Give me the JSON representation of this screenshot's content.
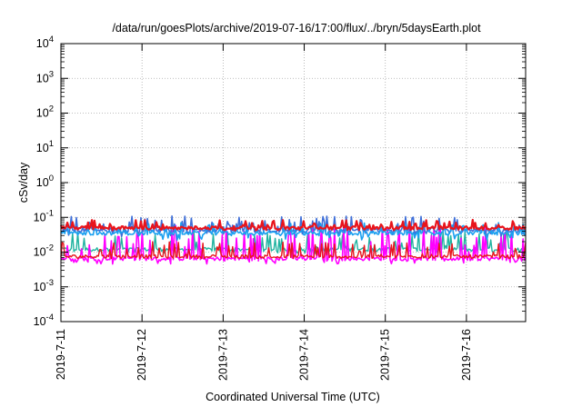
{
  "chart_data": {
    "type": "line",
    "title": "/data/run/goesPlots/archive/2019-07-16/17:00/flux/../bryn/5daysEarth.plot",
    "xlabel": "Coordinated Universal Time (UTC)",
    "ylabel": "cSv/day",
    "yscale": "log",
    "ylim": [
      0.0001,
      10000
    ],
    "xlim": [
      0,
      5.73
    ],
    "grid": true,
    "y_ticks": [
      {
        "base": "10",
        "exp": "-4",
        "value": 0.0001
      },
      {
        "base": "10",
        "exp": "-3",
        "value": 0.001
      },
      {
        "base": "10",
        "exp": "-2",
        "value": 0.01
      },
      {
        "base": "10",
        "exp": "-1",
        "value": 0.1
      },
      {
        "base": "10",
        "exp": "0",
        "value": 1
      },
      {
        "base": "10",
        "exp": "1",
        "value": 10
      },
      {
        "base": "10",
        "exp": "2",
        "value": 100
      },
      {
        "base": "10",
        "exp": "3",
        "value": 1000
      },
      {
        "base": "10",
        "exp": "4",
        "value": 10000
      }
    ],
    "x_ticks": [
      {
        "label": "2019-7-11",
        "value": 0
      },
      {
        "label": "2019-7-12",
        "value": 1
      },
      {
        "label": "2019-7-13",
        "value": 2
      },
      {
        "label": "2019-7-14",
        "value": 3
      },
      {
        "label": "2019-7-15",
        "value": 4
      },
      {
        "label": "2019-7-16",
        "value": 5
      }
    ],
    "series": [
      {
        "color": "#e8141c",
        "base": 0.05,
        "spike": 0.085,
        "dip": 0.042,
        "width": 2.2
      },
      {
        "color": "#3f6fd8",
        "base": 0.042,
        "spike": 0.11,
        "dip": 0.028,
        "width": 1.6
      },
      {
        "color": "#1aa0f0",
        "base": 0.035,
        "spike": 0.07,
        "dip": 0.022,
        "width": 1.6
      },
      {
        "color": "#20b3a0",
        "base": 0.012,
        "spike": 0.04,
        "dip": 0.009,
        "width": 1.4
      },
      {
        "color": "#e8141c",
        "base": 0.0075,
        "spike": 0.02,
        "dip": 0.0065,
        "width": 1.4
      },
      {
        "color": "#ff00ff",
        "base": 0.0065,
        "spike": 0.06,
        "dip": 0.0045,
        "width": 1.6
      }
    ]
  }
}
